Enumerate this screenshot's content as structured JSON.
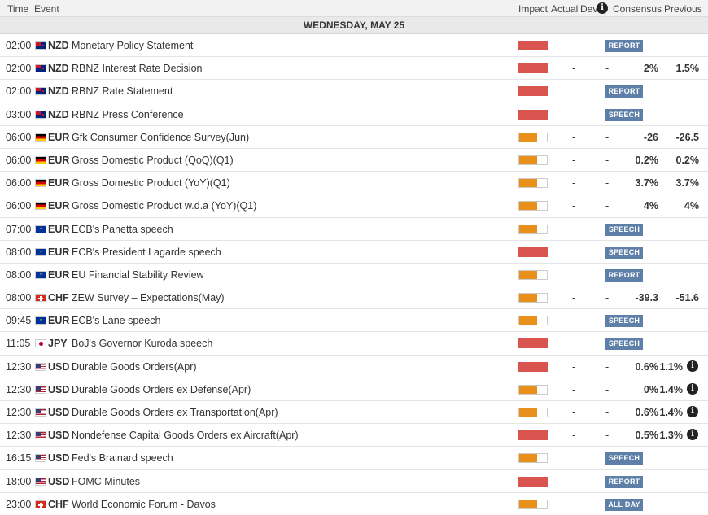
{
  "header": {
    "time": "Time",
    "event": "Event",
    "impact": "Impact",
    "actual": "Actual",
    "dev": "Dev",
    "info": "i",
    "consensus": "Consensus",
    "previous": "Previous"
  },
  "day_label": "WEDNESDAY, MAY 25",
  "colors": {
    "high": "#d9534f",
    "medium": "#e8901b",
    "badge": "#5d7fa8"
  },
  "events": [
    {
      "time": "02:00",
      "flag": "NZD",
      "currency": "NZD",
      "event": "Monetary Policy Statement",
      "impact": "high",
      "actual": "",
      "dev": "",
      "consensus": "",
      "previous": "",
      "badge": "REPORT",
      "info": false
    },
    {
      "time": "02:00",
      "flag": "NZD",
      "currency": "NZD",
      "event": "RBNZ Interest Rate Decision",
      "impact": "high",
      "actual": "-",
      "dev": "-",
      "consensus": "2%",
      "previous": "1.5%",
      "badge": "",
      "info": false
    },
    {
      "time": "02:00",
      "flag": "NZD",
      "currency": "NZD",
      "event": "RBNZ Rate Statement",
      "impact": "high",
      "actual": "",
      "dev": "",
      "consensus": "",
      "previous": "",
      "badge": "REPORT",
      "info": false
    },
    {
      "time": "03:00",
      "flag": "NZD",
      "currency": "NZD",
      "event": "RBNZ Press Conference",
      "impact": "high",
      "actual": "",
      "dev": "",
      "consensus": "",
      "previous": "",
      "badge": "SPEECH",
      "info": false
    },
    {
      "time": "06:00",
      "flag": "DE",
      "currency": "EUR",
      "event": "Gfk Consumer Confidence Survey(Jun)",
      "impact": "medium",
      "actual": "-",
      "dev": "-",
      "consensus": "-26",
      "previous": "-26.5",
      "badge": "",
      "info": false
    },
    {
      "time": "06:00",
      "flag": "DE",
      "currency": "EUR",
      "event": "Gross Domestic Product (QoQ)(Q1)",
      "impact": "medium",
      "actual": "-",
      "dev": "-",
      "consensus": "0.2%",
      "previous": "0.2%",
      "badge": "",
      "info": false
    },
    {
      "time": "06:00",
      "flag": "DE",
      "currency": "EUR",
      "event": "Gross Domestic Product (YoY)(Q1)",
      "impact": "medium",
      "actual": "-",
      "dev": "-",
      "consensus": "3.7%",
      "previous": "3.7%",
      "badge": "",
      "info": false
    },
    {
      "time": "06:00",
      "flag": "DE",
      "currency": "EUR",
      "event": "Gross Domestic Product w.d.a (YoY)(Q1)",
      "impact": "medium",
      "actual": "-",
      "dev": "-",
      "consensus": "4%",
      "previous": "4%",
      "badge": "",
      "info": false
    },
    {
      "time": "07:00",
      "flag": "EU",
      "currency": "EUR",
      "event": "ECB's Panetta speech",
      "impact": "medium",
      "actual": "",
      "dev": "",
      "consensus": "",
      "previous": "",
      "badge": "SPEECH",
      "info": false
    },
    {
      "time": "08:00",
      "flag": "EU",
      "currency": "EUR",
      "event": "ECB's President Lagarde speech",
      "impact": "high",
      "actual": "",
      "dev": "",
      "consensus": "",
      "previous": "",
      "badge": "SPEECH",
      "info": false
    },
    {
      "time": "08:00",
      "flag": "EU",
      "currency": "EUR",
      "event": "EU Financial Stability Review",
      "impact": "medium",
      "actual": "",
      "dev": "",
      "consensus": "",
      "previous": "",
      "badge": "REPORT",
      "info": false
    },
    {
      "time": "08:00",
      "flag": "CHF",
      "currency": "CHF",
      "event": "ZEW Survey – Expectations(May)",
      "impact": "medium",
      "actual": "-",
      "dev": "-",
      "consensus": "-39.3",
      "previous": "-51.6",
      "badge": "",
      "info": false
    },
    {
      "time": "09:45",
      "flag": "EU",
      "currency": "EUR",
      "event": "ECB's Lane speech",
      "impact": "medium",
      "actual": "",
      "dev": "",
      "consensus": "",
      "previous": "",
      "badge": "SPEECH",
      "info": false
    },
    {
      "time": "11:05",
      "flag": "JPY",
      "currency": "JPY",
      "event": "BoJ's Governor Kuroda speech",
      "impact": "high",
      "actual": "",
      "dev": "",
      "consensus": "",
      "previous": "",
      "badge": "SPEECH",
      "info": false
    },
    {
      "time": "12:30",
      "flag": "USD",
      "currency": "USD",
      "event": "Durable Goods Orders(Apr)",
      "impact": "high",
      "actual": "-",
      "dev": "-",
      "consensus": "0.6%",
      "previous": "1.1%",
      "badge": "",
      "info": true
    },
    {
      "time": "12:30",
      "flag": "USD",
      "currency": "USD",
      "event": "Durable Goods Orders ex Defense(Apr)",
      "impact": "medium",
      "actual": "-",
      "dev": "-",
      "consensus": "0%",
      "previous": "1.4%",
      "badge": "",
      "info": true
    },
    {
      "time": "12:30",
      "flag": "USD",
      "currency": "USD",
      "event": "Durable Goods Orders ex Transportation(Apr)",
      "impact": "medium",
      "actual": "-",
      "dev": "-",
      "consensus": "0.6%",
      "previous": "1.4%",
      "badge": "",
      "info": true
    },
    {
      "time": "12:30",
      "flag": "USD",
      "currency": "USD",
      "event": "Nondefense Capital Goods Orders ex Aircraft(Apr)",
      "impact": "high",
      "actual": "-",
      "dev": "-",
      "consensus": "0.5%",
      "previous": "1.3%",
      "badge": "",
      "info": true
    },
    {
      "time": "16:15",
      "flag": "USD",
      "currency": "USD",
      "event": "Fed's Brainard speech",
      "impact": "medium",
      "actual": "",
      "dev": "",
      "consensus": "",
      "previous": "",
      "badge": "SPEECH",
      "info": false
    },
    {
      "time": "18:00",
      "flag": "USD",
      "currency": "USD",
      "event": "FOMC Minutes",
      "impact": "high",
      "actual": "",
      "dev": "",
      "consensus": "",
      "previous": "",
      "badge": "REPORT",
      "info": false
    },
    {
      "time": "23:00",
      "flag": "CHF",
      "currency": "CHF",
      "event": "World Economic Forum - Davos",
      "impact": "medium",
      "actual": "",
      "dev": "",
      "consensus": "",
      "previous": "",
      "badge": "ALL DAY",
      "info": false
    }
  ]
}
